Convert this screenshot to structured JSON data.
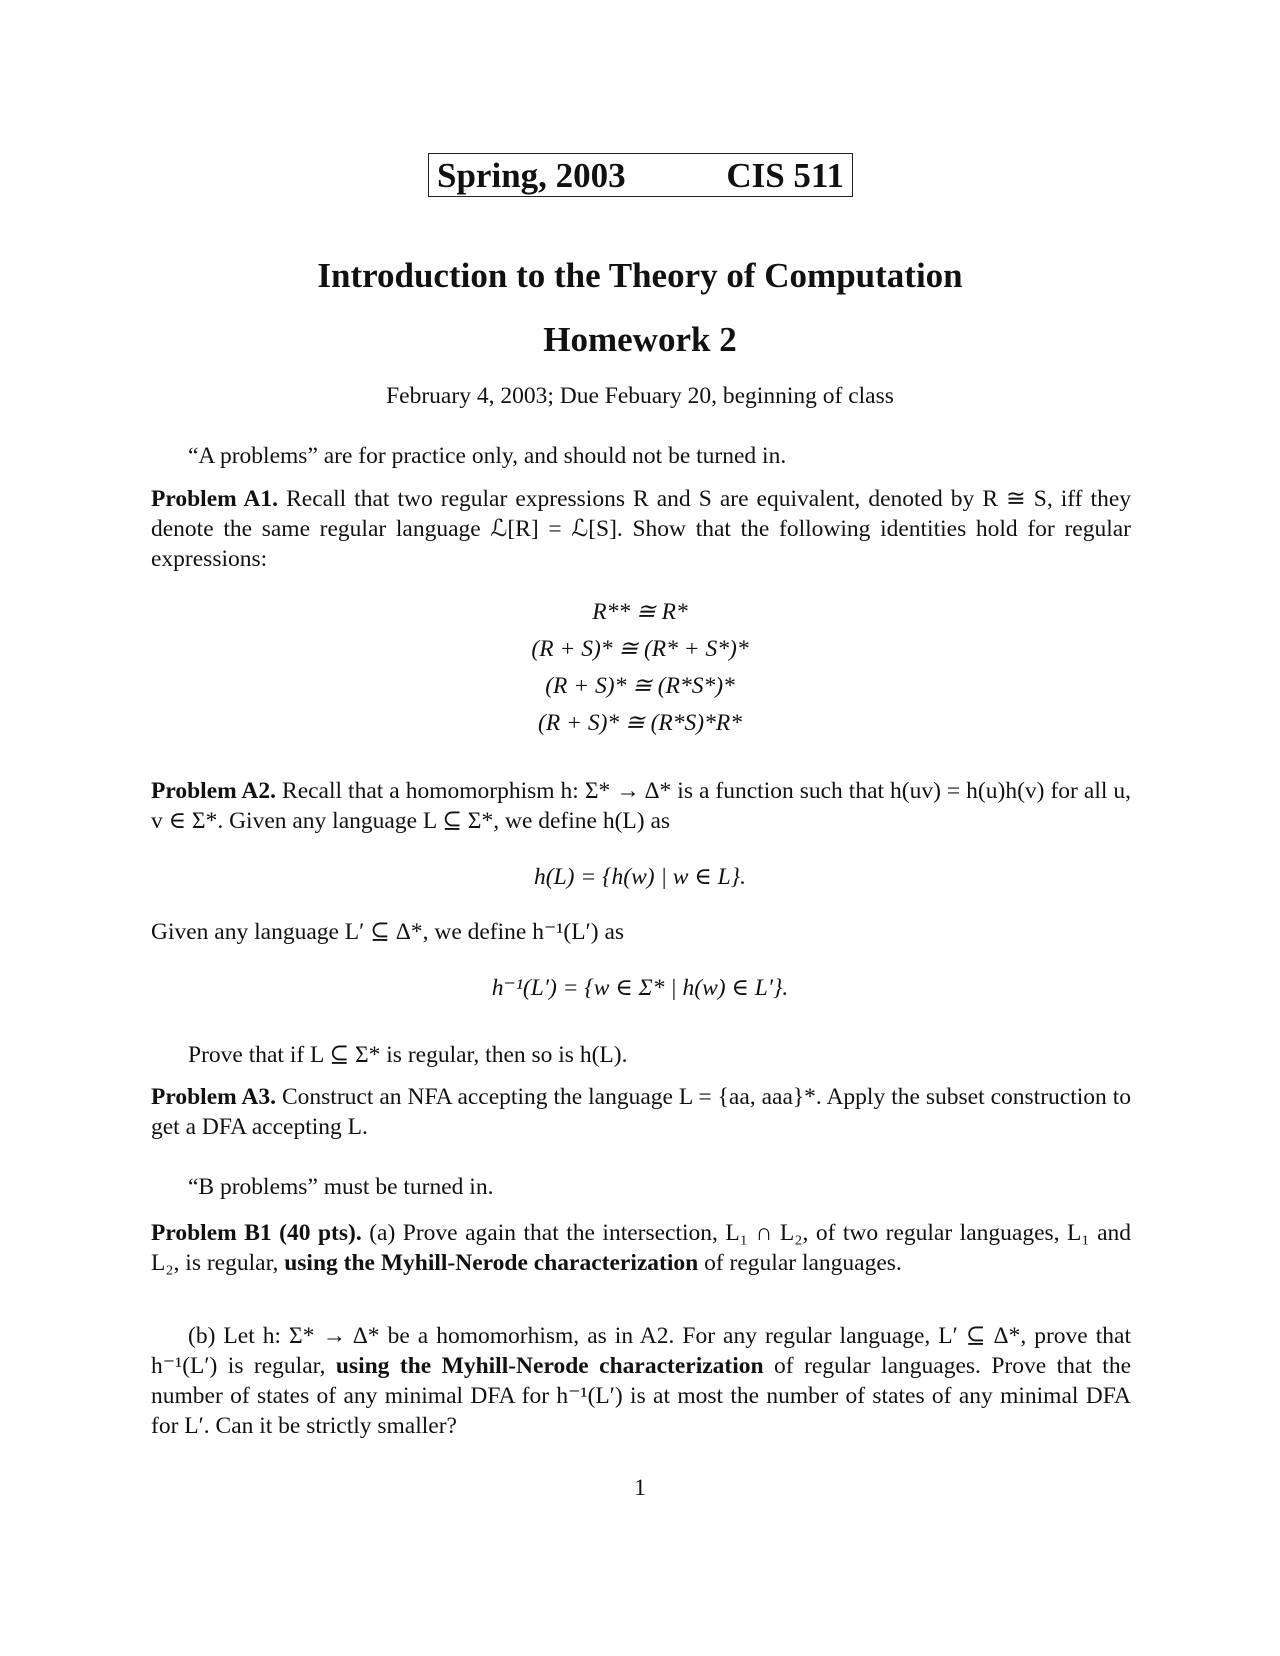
{
  "header": {
    "term": "Spring, 2003",
    "course": "CIS 511"
  },
  "title": "Introduction to the Theory of Computation",
  "subtitle": "Homework 2",
  "date_line": "February 4, 2003; Due Febuary 20, beginning of class",
  "a_intro": "“A problems” are for practice only, and should not be turned in.",
  "a1": {
    "label": "Problem A1.",
    "text": "Recall that two regular expressions R and S are equivalent, denoted by R ≅ S, iff they denote the same regular language ℒ[R] = ℒ[S]. Show that the following identities hold for regular expressions:",
    "equations": [
      "R** ≅ R*",
      "(R + S)* ≅ (R* + S*)*",
      "(R + S)* ≅ (R*S*)*",
      "(R + S)* ≅ (R*S)*R*"
    ]
  },
  "a2": {
    "label": "Problem A2.",
    "text": "Recall that a homomorphism h: Σ* → Δ* is a function such that h(uv) = h(u)h(v) for all u, v ∈ Σ*. Given any language L ⊆ Σ*, we define h(L) as",
    "eq1": "h(L) = {h(w) | w ∈ L}.",
    "text2": "Given any language L′ ⊆ Δ*, we define h⁻¹(L′) as",
    "eq2": "h⁻¹(L′) = {w ∈ Σ* | h(w) ∈ L′}.",
    "text3": "Prove that if L ⊆ Σ* is regular, then so is h(L)."
  },
  "a3": {
    "label": "Problem A3.",
    "text": "Construct an NFA accepting the language L = {aa, aaa}*. Apply the subset construction to get a DFA accepting L."
  },
  "b_intro": "“B problems” must be turned in.",
  "b1": {
    "label": "Problem B1 (40 pts).",
    "a_text1": "(a) Prove again that the intersection, L₁ ∩ L₂, of two regular languages, L₁ and L₂, is regular,",
    "emphasis": "using the Myhill-Nerode characterization",
    "a_text2": "of regular languages.",
    "b_text1": "(b) Let h: Σ* → Δ* be a homomorhism, as in A2. For any regular language, L′ ⊆ Δ*, prove that h⁻¹(L′) is regular,",
    "b_text2": "of regular languages. Prove that the number of states of any minimal DFA for h⁻¹(L′) is at most the number of states of any minimal DFA for L′. Can it be strictly smaller?"
  },
  "page_number": "1"
}
